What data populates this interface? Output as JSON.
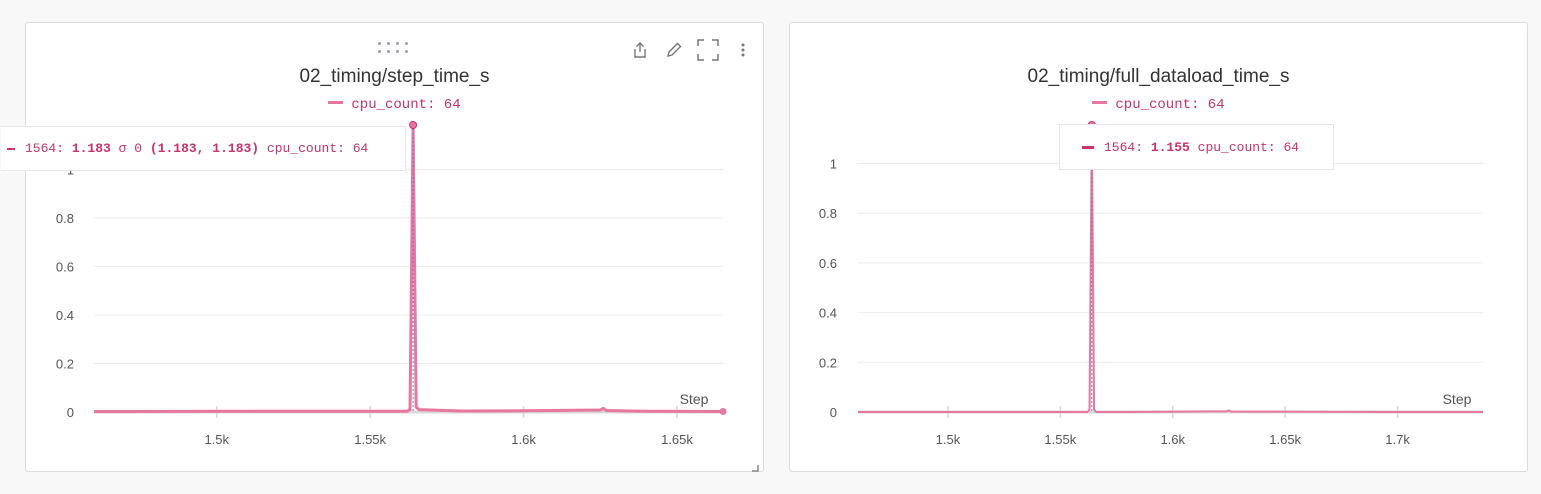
{
  "theme": {
    "accent": "#e8779e",
    "tooltip_text": "#c9336b",
    "axis": "#555555",
    "grid": "#ececec"
  },
  "panels": [
    {
      "title": "02_timing/step_time_s",
      "legend": {
        "label": "cpu_count: 64"
      },
      "tooltip": {
        "step": "1564:",
        "value": "1.183",
        "sigma": "σ 0",
        "range": "(1.183, 1.183)",
        "group": "cpu_count: 64"
      },
      "toolbar": [
        "drag-handle",
        "share-icon",
        "edit-icon",
        "fullscreen-icon",
        "more-icon"
      ]
    },
    {
      "title": "02_timing/full_dataload_time_s",
      "legend": {
        "label": "cpu_count: 64"
      },
      "tooltip": {
        "step": "1564:",
        "value": "1.155",
        "group": "cpu_count: 64"
      }
    }
  ],
  "chart_data": [
    {
      "type": "line",
      "title": "02_timing/step_time_s",
      "xlabel": "Step",
      "ylabel": "",
      "xlim": [
        1460,
        1665
      ],
      "ylim": [
        0,
        1.183
      ],
      "x_ticks": [
        1500,
        1550,
        1600,
        1650
      ],
      "x_tick_labels": [
        "1.5k",
        "1.55k",
        "1.6k",
        "1.65k"
      ],
      "y_ticks": [
        0,
        0.2,
        0.4,
        0.6,
        0.8,
        1
      ],
      "y_tick_labels": [
        "0",
        "0.2",
        "0.4",
        "0.6",
        "0.8",
        "1"
      ],
      "grid": true,
      "legend_position": "top-center",
      "series": [
        {
          "name": "cpu_count: 64",
          "x": [
            1460,
            1520,
            1562,
            1563,
            1564,
            1565,
            1566,
            1580,
            1600,
            1625,
            1626,
            1627,
            1640,
            1665
          ],
          "y": [
            0.002,
            0.003,
            0.003,
            0.01,
            1.183,
            0.02,
            0.01,
            0.004,
            0.005,
            0.008,
            0.015,
            0.006,
            0.003,
            0.002
          ]
        }
      ]
    },
    {
      "type": "line",
      "title": "02_timing/full_dataload_time_s",
      "xlabel": "Step",
      "ylabel": "",
      "xlim": [
        1460,
        1738
      ],
      "ylim": [
        0,
        1.155
      ],
      "x_ticks": [
        1500,
        1550,
        1600,
        1650,
        1700
      ],
      "x_tick_labels": [
        "1.5k",
        "1.55k",
        "1.6k",
        "1.65k",
        "1.7k"
      ],
      "y_ticks": [
        0,
        0.2,
        0.4,
        0.6,
        0.8,
        1
      ],
      "y_tick_labels": [
        "0",
        "0.2",
        "0.4",
        "0.6",
        "0.8",
        "1"
      ],
      "grid": true,
      "legend_position": "top-center",
      "series": [
        {
          "name": "cpu_count: 64",
          "x": [
            1460,
            1562,
            1563,
            1564,
            1565,
            1566,
            1580,
            1624,
            1625,
            1626,
            1700,
            1738
          ],
          "y": [
            0.0,
            0.0,
            0.01,
            1.155,
            0.01,
            0.0,
            0.0,
            0.003,
            0.006,
            0.002,
            0.0,
            0.0
          ]
        }
      ]
    }
  ]
}
